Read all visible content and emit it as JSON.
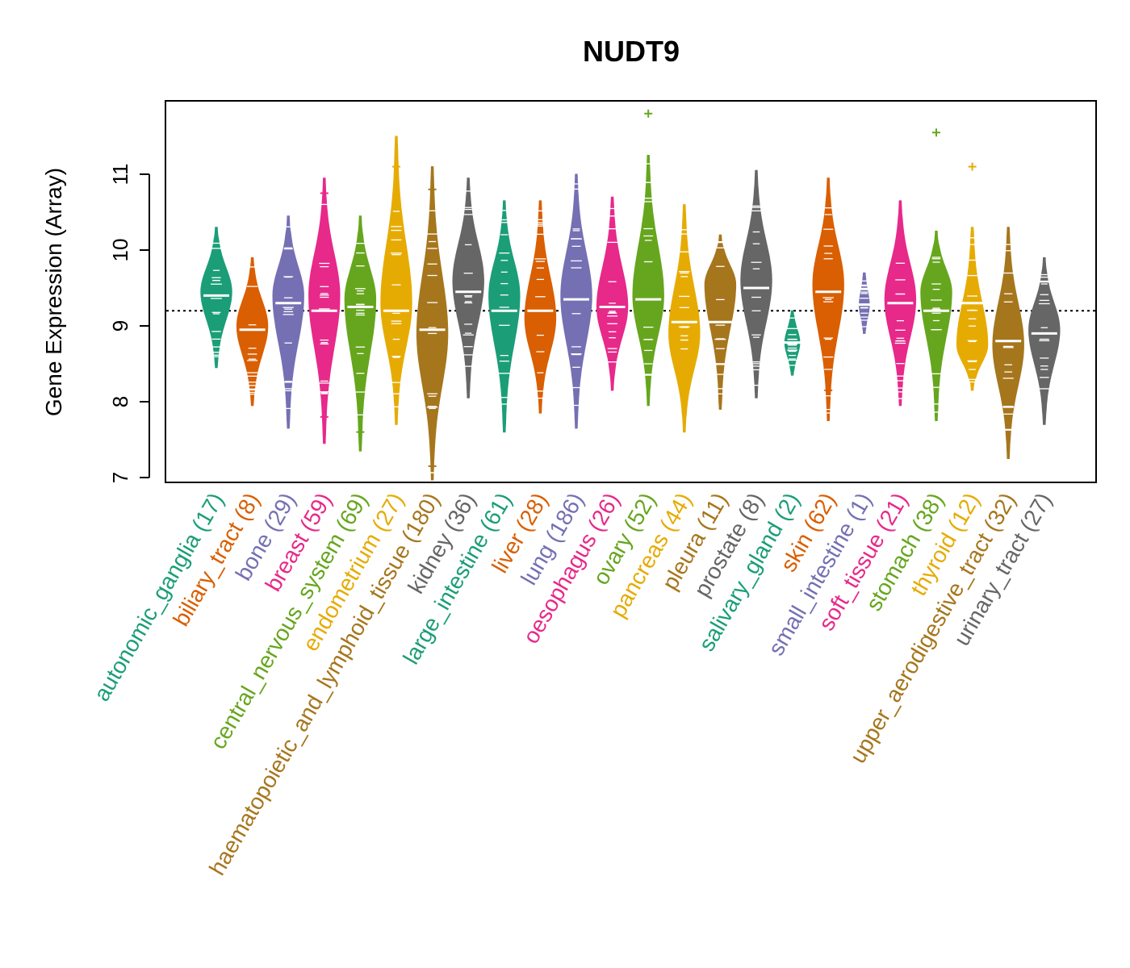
{
  "chart_data": {
    "type": "violin",
    "title": "NUDT9",
    "ylabel": "Gene Expression (Array)",
    "xlabel": "",
    "ylim": [
      7,
      12
    ],
    "yticks": [
      7,
      8,
      9,
      10,
      11
    ],
    "reference_line": 9.2,
    "categories": [
      {
        "name": "autonomic_ganglia",
        "count_label": "(17)",
        "color": "#1B9E77",
        "min": 8.45,
        "max": 10.3,
        "median": 9.4,
        "mode": 9.45,
        "outliers": []
      },
      {
        "name": "biliary_tract",
        "count_label": "(8)",
        "color": "#D95F02",
        "min": 7.95,
        "max": 9.9,
        "median": 8.95,
        "mode": 9.0,
        "outliers": []
      },
      {
        "name": "bone",
        "count_label": "(29)",
        "color": "#7570B3",
        "min": 7.65,
        "max": 10.45,
        "median": 9.3,
        "mode": 9.4,
        "outliers": []
      },
      {
        "name": "breast",
        "count_label": "(59)",
        "color": "#E7298A",
        "min": 7.45,
        "max": 10.95,
        "median": 9.2,
        "mode": 9.4,
        "outliers": [
          10.75,
          7.8
        ]
      },
      {
        "name": "central_nervous_system",
        "count_label": "(69)",
        "color": "#66A61E",
        "min": 7.35,
        "max": 10.45,
        "median": 9.25,
        "mode": 9.35,
        "outliers": [
          7.6
        ]
      },
      {
        "name": "endometrium",
        "count_label": "(27)",
        "color": "#E6AB02",
        "min": 7.7,
        "max": 11.5,
        "median": 9.2,
        "mode": 9.3,
        "outliers": [
          11.1
        ]
      },
      {
        "name": "haematopoietic_and_lymphoid_tissue",
        "count_label": "(180)",
        "color": "#A6761D",
        "min": 6.95,
        "max": 11.1,
        "median": 8.95,
        "mode": 8.9,
        "outliers": [
          10.8,
          7.15
        ]
      },
      {
        "name": "kidney",
        "count_label": "(36)",
        "color": "#666666",
        "min": 8.05,
        "max": 10.95,
        "median": 9.45,
        "mode": 9.6,
        "outliers": []
      },
      {
        "name": "large_intestine",
        "count_label": "(61)",
        "color": "#1B9E77",
        "min": 7.6,
        "max": 10.65,
        "median": 9.2,
        "mode": 9.4,
        "outliers": []
      },
      {
        "name": "liver",
        "count_label": "(28)",
        "color": "#D95F02",
        "min": 7.85,
        "max": 10.65,
        "median": 9.2,
        "mode": 9.1,
        "outliers": []
      },
      {
        "name": "lung",
        "count_label": "(186)",
        "color": "#7570B3",
        "min": 7.65,
        "max": 11.0,
        "median": 9.35,
        "mode": 9.4,
        "outliers": []
      },
      {
        "name": "oesophagus",
        "count_label": "(26)",
        "color": "#E7298A",
        "min": 8.15,
        "max": 10.7,
        "median": 9.25,
        "mode": 9.25,
        "outliers": []
      },
      {
        "name": "ovary",
        "count_label": "(52)",
        "color": "#66A61E",
        "min": 7.95,
        "max": 11.25,
        "median": 9.35,
        "mode": 9.4,
        "outliers": [
          11.8
        ]
      },
      {
        "name": "pancreas",
        "count_label": "(44)",
        "color": "#E6AB02",
        "min": 7.6,
        "max": 10.6,
        "median": 9.05,
        "mode": 8.9,
        "outliers": []
      },
      {
        "name": "pleura",
        "count_label": "(11)",
        "color": "#A6761D",
        "min": 7.9,
        "max": 10.2,
        "median": 9.05,
        "mode": 9.55,
        "outliers": []
      },
      {
        "name": "prostate",
        "count_label": "(8)",
        "color": "#666666",
        "min": 8.05,
        "max": 11.05,
        "median": 9.5,
        "mode": 9.6,
        "outliers": []
      },
      {
        "name": "salivary_gland",
        "count_label": "(2)",
        "color": "#1B9E77",
        "min": 8.35,
        "max": 9.2,
        "median": 8.78,
        "mode": 8.78,
        "outliers": []
      },
      {
        "name": "skin",
        "count_label": "(62)",
        "color": "#D95F02",
        "min": 7.75,
        "max": 10.95,
        "median": 9.45,
        "mode": 9.55,
        "outliers": [
          8.15
        ]
      },
      {
        "name": "small_intestine",
        "count_label": "(1)",
        "color": "#7570B3",
        "min": 8.9,
        "max": 9.7,
        "median": 9.28,
        "mode": 9.28,
        "outliers": []
      },
      {
        "name": "soft_tissue",
        "count_label": "(21)",
        "color": "#E7298A",
        "min": 7.95,
        "max": 10.65,
        "median": 9.3,
        "mode": 9.35,
        "outliers": []
      },
      {
        "name": "stomach",
        "count_label": "(38)",
        "color": "#66A61E",
        "min": 7.75,
        "max": 10.25,
        "median": 9.2,
        "mode": 9.45,
        "outliers": [
          11.55
        ]
      },
      {
        "name": "thyroid",
        "count_label": "(12)",
        "color": "#E6AB02",
        "min": 8.15,
        "max": 10.3,
        "median": 9.3,
        "mode": 8.75,
        "outliers": [
          11.1
        ]
      },
      {
        "name": "upper_aerodigestive_tract",
        "count_label": "(32)",
        "color": "#A6761D",
        "min": 7.25,
        "max": 10.3,
        "median": 8.8,
        "mode": 8.75,
        "outliers": []
      },
      {
        "name": "urinary_tract",
        "count_label": "(27)",
        "color": "#666666",
        "min": 7.7,
        "max": 9.9,
        "median": 8.9,
        "mode": 8.95,
        "outliers": []
      }
    ]
  }
}
